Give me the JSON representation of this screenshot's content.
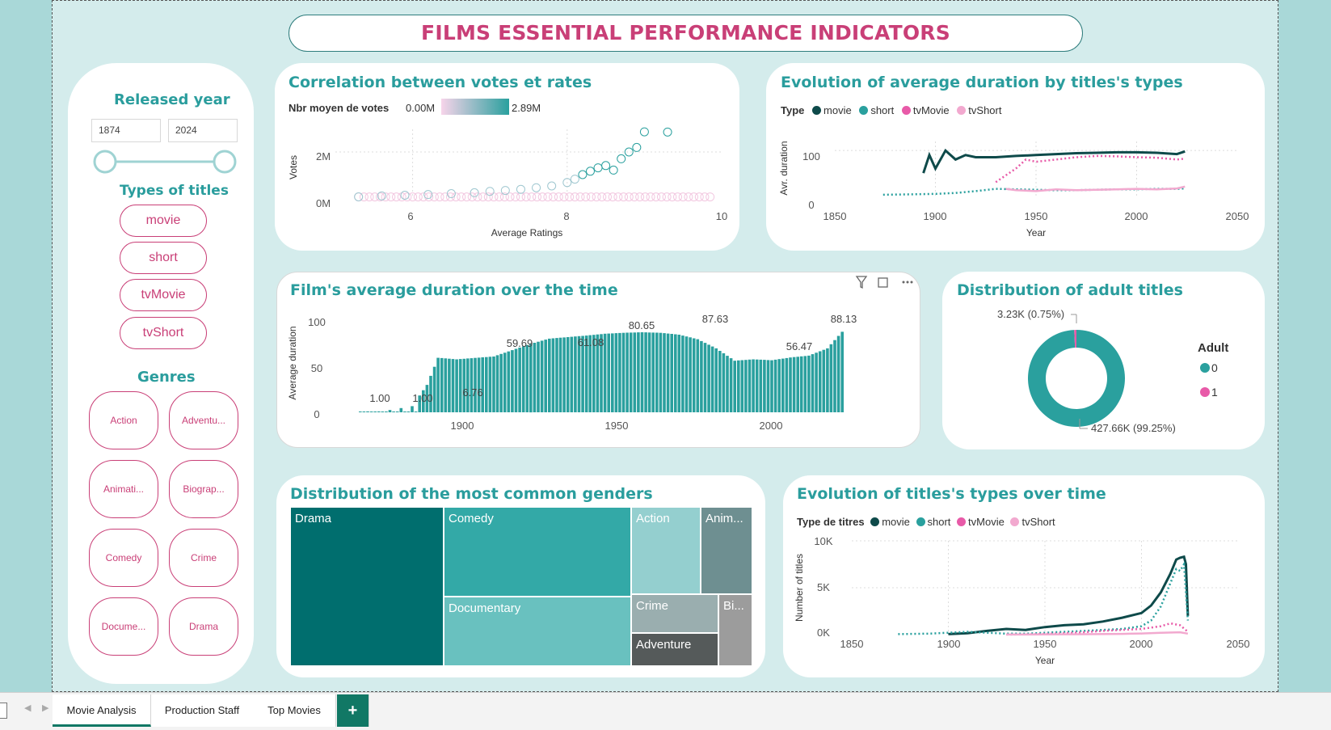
{
  "title": "FILMS ESSENTIAL PERFORMANCE INDICATORS",
  "slicer": {
    "year_heading": "Released year",
    "year_from": "1874",
    "year_to": "2024",
    "types_heading": "Types of titles",
    "types": [
      "movie",
      "short",
      "tvMovie",
      "tvShort"
    ],
    "genres_heading": "Genres",
    "genres": [
      "Action",
      "Adventu...",
      "Animati...",
      "Biograp...",
      "Comedy",
      "Crime",
      "Docume...",
      "Drama"
    ]
  },
  "scatter": {
    "title": "Correlation between votes et rates",
    "legend_label": "Nbr moyen de votes",
    "legend_min": "0.00M",
    "legend_max": "2.89M",
    "ylabel": "Votes",
    "xlabel": "Average Ratings",
    "yticks": [
      "2M",
      "0M"
    ],
    "xticks": [
      "6",
      "8",
      "10"
    ]
  },
  "evo_duration": {
    "title": "Evolution of average duration by titles's types",
    "legend_label": "Type",
    "series": [
      "movie",
      "short",
      "tvMovie",
      "tvShort"
    ],
    "ylabel": "Avr. duration",
    "xlabel": "Year",
    "yticks": [
      "100",
      "0"
    ],
    "xticks": [
      "1850",
      "1900",
      "1950",
      "2000",
      "2050"
    ]
  },
  "film_duration": {
    "title": "Film's average duration over the time",
    "ylabel": "Average duration",
    "yticks": [
      "100",
      "50",
      "0"
    ],
    "xticks": [
      "1900",
      "1950",
      "2000"
    ],
    "labels": [
      "1.00",
      "1.00",
      "6.76",
      "59.69",
      "61.08",
      "80.65",
      "87.63",
      "56.47",
      "88.13"
    ]
  },
  "adult": {
    "title": "Distribution of adult titles",
    "legend_title": "Adult",
    "legend_items": [
      "0",
      "1"
    ],
    "label_small": "3.23K (0.75%)",
    "label_big": "427.66K (99.25%)"
  },
  "treemap": {
    "title": "Distribution of the most common genders",
    "cells": [
      "Drama",
      "Comedy",
      "Action",
      "Anim...",
      "Documentary",
      "Crime",
      "Bi...",
      "Adventure"
    ]
  },
  "evo_types": {
    "title": "Evolution of titles's types over time",
    "legend_label": "Type de titres",
    "series": [
      "movie",
      "short",
      "tvMovie",
      "tvShort"
    ],
    "ylabel": "Number of titles",
    "xlabel": "Year",
    "yticks": [
      "10K",
      "5K",
      "0K"
    ],
    "xticks": [
      "1850",
      "1900",
      "1950",
      "2000",
      "2050"
    ]
  },
  "tabs": [
    "Movie Analysis",
    "Production Staff",
    "Top Movies",
    "+"
  ],
  "colors": {
    "movie": "#0e4a4a",
    "short": "#2aa09e",
    "tvMovie": "#e85aa8",
    "tvShort": "#f2a9cf",
    "title_pink": "#c93f77",
    "teal": "#2a9d9d"
  },
  "chart_data": [
    {
      "type": "scatter",
      "title": "Correlation between votes et rates",
      "xlabel": "Average Ratings",
      "ylabel": "Votes",
      "xlim": [
        5,
        10
      ],
      "ylim": [
        0,
        3000000
      ],
      "points": [
        [
          5.3,
          20000
        ],
        [
          5.6,
          60000
        ],
        [
          5.9,
          90000
        ],
        [
          6.2,
          120000
        ],
        [
          6.5,
          160000
        ],
        [
          6.8,
          200000
        ],
        [
          7.0,
          260000
        ],
        [
          7.2,
          300000
        ],
        [
          7.4,
          350000
        ],
        [
          7.6,
          420000
        ],
        [
          7.8,
          500000
        ],
        [
          8.0,
          650000
        ],
        [
          8.1,
          800000
        ],
        [
          8.2,
          1000000
        ],
        [
          8.3,
          1150000
        ],
        [
          8.4,
          1300000
        ],
        [
          8.5,
          1400000
        ],
        [
          8.6,
          1200000
        ],
        [
          8.7,
          1700000
        ],
        [
          8.8,
          2000000
        ],
        [
          8.9,
          2200000
        ],
        [
          9.0,
          2890000
        ],
        [
          9.3,
          2880000
        ]
      ]
    },
    {
      "type": "line",
      "title": "Evolution of average duration by titles's types",
      "xlabel": "Year",
      "ylabel": "Avr. duration",
      "xlim": [
        1850,
        2050
      ],
      "ylim": [
        0,
        120
      ],
      "series": [
        {
          "name": "movie",
          "x": [
            1894,
            1897,
            1900,
            1905,
            1910,
            1915,
            1920,
            1930,
            1940,
            1950,
            1960,
            1970,
            1980,
            1990,
            2000,
            2010,
            2020,
            2024
          ],
          "y": [
            50,
            90,
            60,
            100,
            80,
            90,
            85,
            85,
            88,
            90,
            92,
            94,
            95,
            96,
            96,
            95,
            92,
            98
          ]
        },
        {
          "name": "short",
          "x": [
            1874,
            1890,
            1900,
            1910,
            1920,
            1930,
            1940,
            1950,
            1960,
            1970,
            1980,
            1990,
            2000,
            2010,
            2020,
            2024
          ],
          "y": [
            2,
            3,
            4,
            6,
            10,
            15,
            14,
            13,
            12,
            12,
            13,
            14,
            14,
            15,
            15,
            16
          ]
        },
        {
          "name": "tvMovie",
          "x": [
            1930,
            1935,
            1940,
            1945,
            1950,
            1960,
            1970,
            1980,
            1990,
            2000,
            2010,
            2020,
            2024
          ],
          "y": [
            30,
            45,
            60,
            80,
            75,
            80,
            85,
            88,
            87,
            85,
            84,
            80,
            82
          ]
        },
        {
          "name": "tvShort",
          "x": [
            1935,
            1940,
            1950,
            1960,
            1970,
            1980,
            1990,
            2000,
            2010,
            2020,
            2024
          ],
          "y": [
            15,
            12,
            10,
            14,
            12,
            13,
            14,
            15,
            14,
            16,
            20
          ]
        }
      ]
    },
    {
      "type": "bar",
      "title": "Film's average duration over the time",
      "ylabel": "Average duration",
      "ylim": [
        0,
        100
      ],
      "x_range": [
        1894,
        2024
      ],
      "values_by_year": {
        "1894": 1.0,
        "1900": 1.0,
        "1908": 6.76,
        "1912": 30,
        "1915": 59.69,
        "1920": 58,
        "1930": 61.08,
        "1940": 75,
        "1945": 80.65,
        "1955": 84,
        "1960": 86,
        "1965": 87,
        "1970": 87.63,
        "1975": 87,
        "1980": 85,
        "1985": 80,
        "1990": 70,
        "1995": 56.47,
        "2000": 58,
        "2005": 57,
        "2010": 60,
        "2015": 62,
        "2020": 70,
        "2024": 88.13
      }
    },
    {
      "type": "pie",
      "title": "Distribution of adult titles",
      "labels": [
        "0",
        "1"
      ],
      "values": [
        427660,
        3230
      ],
      "percent": [
        99.25,
        0.75
      ]
    },
    {
      "type": "heatmap",
      "title": "Distribution of the most common genders",
      "categories": [
        "Drama",
        "Comedy",
        "Documentary",
        "Action",
        "Crime",
        "Adventure",
        "Animation",
        "Biography"
      ],
      "values": [
        31,
        22,
        15,
        6,
        5,
        4,
        5,
        3
      ]
    },
    {
      "type": "line",
      "title": "Evolution of titles's types over time",
      "xlabel": "Year",
      "ylabel": "Number of titles",
      "xlim": [
        1850,
        2050
      ],
      "ylim": [
        0,
        10000
      ],
      "series": [
        {
          "name": "movie",
          "x": [
            1900,
            1910,
            1920,
            1930,
            1940,
            1950,
            1960,
            1970,
            1980,
            1990,
            2000,
            2005,
            2010,
            2015,
            2018,
            2020,
            2022,
            2023,
            2024
          ],
          "y": [
            50,
            150,
            400,
            600,
            500,
            800,
            1000,
            1100,
            1400,
            1800,
            2300,
            3100,
            4500,
            6500,
            8000,
            8200,
            8300,
            7500,
            2000
          ]
        },
        {
          "name": "short",
          "x": [
            1874,
            1890,
            1900,
            1910,
            1920,
            1930,
            1940,
            1950,
            1960,
            1970,
            1980,
            1990,
            2000,
            2005,
            2010,
            2015,
            2018,
            2020,
            2022,
            2024
          ],
          "y": [
            50,
            100,
            200,
            300,
            200,
            100,
            100,
            200,
            300,
            400,
            500,
            600,
            900,
            1500,
            3000,
            5500,
            7000,
            6800,
            7500,
            1500
          ]
        },
        {
          "name": "tvMovie",
          "x": [
            1930,
            1940,
            1950,
            1960,
            1970,
            1980,
            1990,
            2000,
            2010,
            2015,
            2020,
            2024
          ],
          "y": [
            10,
            30,
            80,
            150,
            250,
            400,
            500,
            600,
            900,
            1200,
            1000,
            300
          ]
        },
        {
          "name": "tvShort",
          "x": [
            1930,
            1950,
            1970,
            1990,
            2000,
            2010,
            2020,
            2024
          ],
          "y": [
            5,
            20,
            40,
            80,
            120,
            200,
            250,
            100
          ]
        }
      ]
    }
  ]
}
